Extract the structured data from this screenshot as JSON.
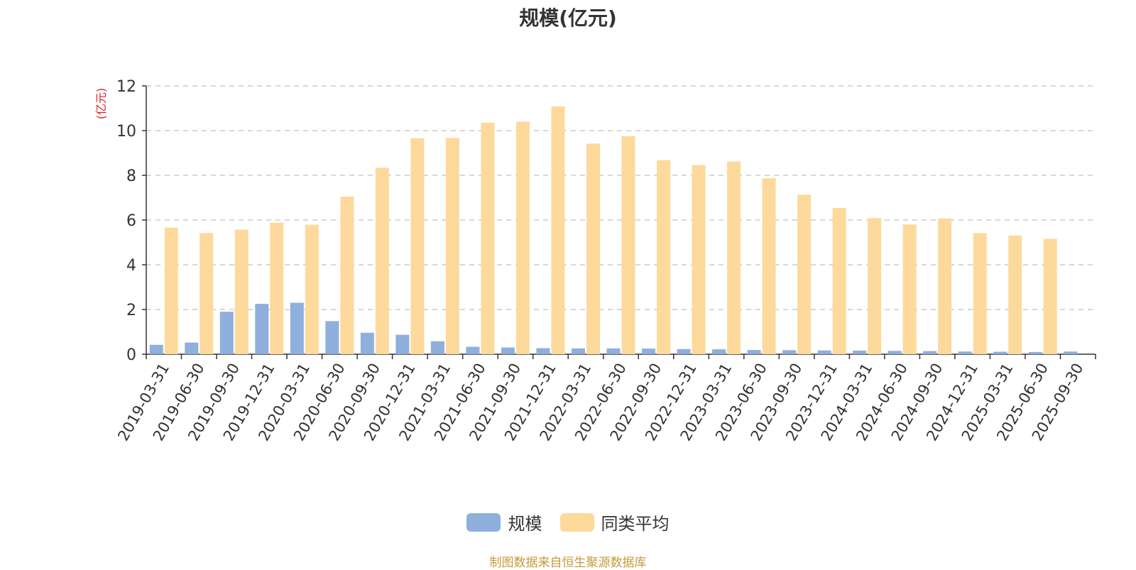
{
  "chart_data": {
    "type": "bar",
    "title": "规模(亿元)",
    "ylabel": "(亿元)",
    "xlabel": "",
    "ylim": [
      0,
      12
    ],
    "yticks": [
      0,
      2,
      4,
      6,
      8,
      10,
      12
    ],
    "grid": true,
    "legend_position": "bottom-center",
    "categories": [
      "2019-03-31",
      "2019-06-30",
      "2019-09-30",
      "2019-12-31",
      "2020-03-31",
      "2020-06-30",
      "2020-09-30",
      "2020-12-31",
      "2021-03-31",
      "2021-06-30",
      "2021-09-30",
      "2021-12-31",
      "2022-03-31",
      "2022-06-30",
      "2022-09-30",
      "2022-12-31",
      "2023-03-31",
      "2023-06-30",
      "2023-09-30",
      "2023-12-31",
      "2024-03-31",
      "2024-06-30",
      "2024-09-30",
      "2024-12-31",
      "2025-03-31",
      "2025-06-30",
      "2025-09-30"
    ],
    "series": [
      {
        "name": "规模",
        "color": "#8fafdc",
        "values": [
          0.42,
          0.52,
          1.9,
          2.25,
          2.3,
          1.48,
          0.96,
          0.87,
          0.58,
          0.33,
          0.3,
          0.27,
          0.26,
          0.26,
          0.25,
          0.23,
          0.22,
          0.19,
          0.18,
          0.17,
          0.16,
          0.15,
          0.14,
          0.12,
          0.11,
          0.1,
          0.12
        ]
      },
      {
        "name": "同类平均",
        "color": "#fdd99b",
        "values": [
          5.66,
          5.42,
          5.57,
          5.88,
          5.79,
          7.05,
          8.34,
          9.66,
          9.67,
          10.35,
          10.4,
          11.08,
          9.42,
          9.75,
          8.68,
          8.46,
          8.62,
          7.87,
          7.13,
          6.54,
          6.09,
          5.8,
          6.07,
          5.42,
          5.31,
          5.16,
          null
        ]
      }
    ]
  },
  "source_note": "制图数据来自恒生聚源数据库"
}
